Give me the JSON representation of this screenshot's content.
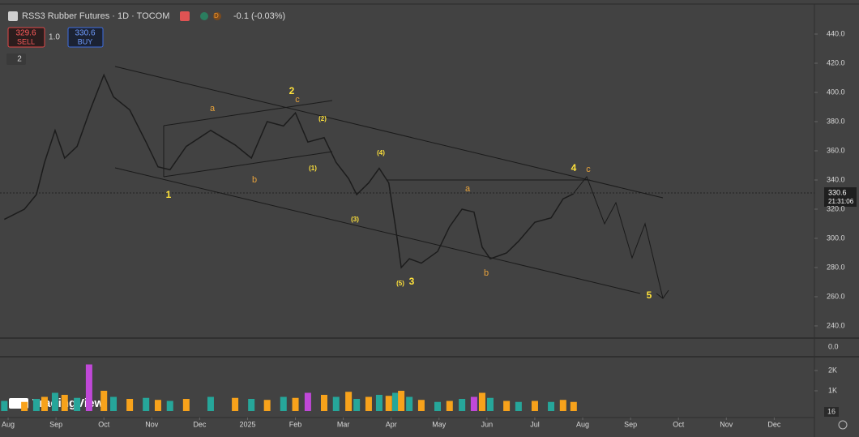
{
  "header": {
    "change": "-0.1 (-0.03%)",
    "sell_price": "329.6",
    "sell_label": "SELL",
    "quantity": "1.0",
    "buy_price": "330.6",
    "buy_label": "BUY",
    "indicators_count": "2",
    "last_price": "330.6",
    "countdown": "21:31:06",
    "indicator_pane_value": "0.0",
    "corner_badge": "16",
    "brand": "TradingView"
  },
  "chart_data": [
    {
      "type": "line",
      "title": "RSS3 Rubber Futures · 1D · TOCOM",
      "color": "#1c1c1c",
      "x": [
        -0.08,
        0.34,
        0.59,
        0.76,
        0.98,
        1.18,
        1.44,
        1.69,
        2.0,
        2.2,
        2.54,
        2.88,
        3.13,
        3.38,
        3.72,
        4.23,
        4.74,
        5.08,
        5.41,
        5.75,
        6.0,
        6.26,
        6.6,
        6.85,
        7.11,
        7.28,
        7.53,
        7.75,
        7.95,
        8.09,
        8.21,
        8.38,
        8.63,
        8.97,
        9.22,
        9.48,
        9.73,
        9.9,
        10.07,
        10.41,
        10.66,
        11.0,
        11.34,
        11.59,
        11.81
      ],
      "series": [
        {
          "name": "RSS3",
          "color": "#1c1c1c",
          "values": [
            313,
            320,
            330,
            352,
            374,
            355,
            363,
            386,
            412,
            397,
            388,
            366,
            349,
            347,
            363,
            374,
            364,
            355,
            380,
            377,
            386,
            366,
            369,
            352,
            341,
            330,
            338,
            348,
            338,
            308,
            280,
            286,
            283,
            291,
            308,
            320,
            318,
            294,
            286,
            290,
            298,
            311,
            314,
            327,
            330.6
          ]
        }
      ],
      "xlim": [
        -0.17,
        16.84
      ],
      "xticks": [
        {
          "value": 0,
          "label": "Aug"
        },
        {
          "value": 1,
          "label": "Sep"
        },
        {
          "value": 2,
          "label": "Oct"
        },
        {
          "value": 3,
          "label": "Nov"
        },
        {
          "value": 4,
          "label": "Dec"
        },
        {
          "value": 5,
          "label": "2025"
        },
        {
          "value": 6,
          "label": "Feb"
        },
        {
          "value": 7,
          "label": "Mar"
        },
        {
          "value": 8,
          "label": "Apr"
        },
        {
          "value": 9,
          "label": "May"
        },
        {
          "value": 10,
          "label": "Jun"
        },
        {
          "value": 11,
          "label": "Jul"
        },
        {
          "value": 12,
          "label": "Aug"
        },
        {
          "value": 13,
          "label": "Sep"
        },
        {
          "value": 14,
          "label": "Oct"
        },
        {
          "value": 15,
          "label": "Nov"
        },
        {
          "value": 16,
          "label": "Dec"
        }
      ],
      "ylim": [
        232.2,
        458.9
      ],
      "yticks": [
        {
          "value": 240,
          "label": "240.0"
        },
        {
          "value": 260,
          "label": "260.0"
        },
        {
          "value": 280,
          "label": "280.0"
        },
        {
          "value": 300,
          "label": "300.0"
        },
        {
          "value": 320,
          "label": "320.0"
        },
        {
          "value": 340,
          "label": "340.0"
        },
        {
          "value": 360,
          "label": "360.0"
        },
        {
          "value": 380,
          "label": "380.0"
        },
        {
          "value": 400,
          "label": "400.0"
        },
        {
          "value": 420,
          "label": "420.0"
        },
        {
          "value": 440,
          "label": "440.0"
        }
      ],
      "annotations": [
        "1",
        "2",
        "c",
        "a",
        "b",
        "(1)",
        "(2)",
        "(3)",
        "(4)",
        "(5)",
        "3",
        "a",
        "b",
        "4",
        "c",
        "5"
      ]
    },
    {
      "type": "bar",
      "x": [
        -0.08,
        0.34,
        0.59,
        0.76,
        0.98,
        1.18,
        1.44,
        1.69,
        2.0,
        2.2,
        2.54,
        2.88,
        3.13,
        3.38,
        3.72,
        4.23,
        4.74,
        5.08,
        5.41,
        5.75,
        6.0,
        6.26,
        6.6,
        6.85,
        7.11,
        7.28,
        7.53,
        7.75,
        7.95,
        8.09,
        8.21,
        8.38,
        8.63,
        8.97,
        9.22,
        9.48,
        9.73,
        9.9,
        10.07,
        10.41,
        10.66,
        11.0,
        11.34,
        11.59,
        11.81
      ],
      "values": [
        500,
        450,
        600,
        700,
        900,
        800,
        650,
        2300,
        1000,
        700,
        600,
        650,
        550,
        500,
        600,
        700,
        650,
        600,
        550,
        700,
        650,
        900,
        800,
        700,
        950,
        600,
        700,
        800,
        750,
        900,
        1000,
        700,
        550,
        450,
        500,
        600,
        700,
        900,
        650,
        500,
        450,
        500,
        450,
        550,
        450
      ],
      "colors": [
        "#26a69a",
        "#f7a21b",
        "#26a69a",
        "#f7a21b",
        "#26a69a",
        "#f7a21b",
        "#26a69a",
        "#c048d8",
        "#f7a21b",
        "#26a69a",
        "#f7a21b",
        "#26a69a",
        "#f7a21b",
        "#26a69a",
        "#f7a21b",
        "#26a69a",
        "#f7a21b",
        "#26a69a",
        "#f7a21b",
        "#26a69a",
        "#f7a21b",
        "#c048d8",
        "#f7a21b",
        "#26a69a",
        "#f7a21b",
        "#26a69a",
        "#f7a21b",
        "#26a69a",
        "#f7a21b",
        "#26a69a",
        "#f7a21b",
        "#26a69a",
        "#f7a21b",
        "#26a69a",
        "#f7a21b",
        "#26a69a",
        "#c048d8",
        "#f7a21b",
        "#26a69a",
        "#f7a21b",
        "#26a69a",
        "#f7a21b",
        "#26a69a",
        "#f7a21b",
        "#f7a21b"
      ],
      "xlim": [
        -0.17,
        16.84
      ],
      "ylim": [
        -320,
        2640
      ],
      "yticks": [
        {
          "value": 1000,
          "label": "1K"
        },
        {
          "value": 2000,
          "label": "2K"
        }
      ]
    }
  ]
}
